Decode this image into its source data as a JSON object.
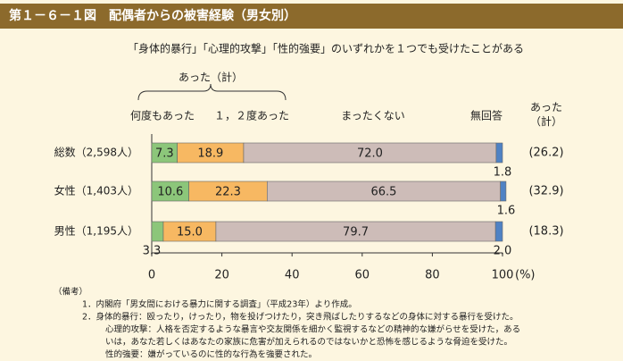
{
  "header": {
    "title": "第１－６－１図　配偶者からの被害経験（男女別）"
  },
  "chart_data": {
    "type": "stacked-bar-horizontal",
    "subtitle": "「身体的暴行」「心理的攻撃」「性的強要」のいずれかを１つでも受けたことがある",
    "bracket_label": "あった（計）",
    "categories": [
      "総数（2,598人）",
      "女性（1,403人）",
      "男性（1,195人）"
    ],
    "series": [
      {
        "name": "何度もあった",
        "color": "#8cc67a",
        "values": [
          7.3,
          10.6,
          3.3
        ],
        "value_labels": [
          "7.3",
          "10.6",
          "3.3"
        ]
      },
      {
        "name": "１，２度あった",
        "color": "#f7b862",
        "values": [
          18.9,
          22.3,
          15.0
        ],
        "value_labels": [
          "18.9",
          "22.3",
          "15.0"
        ]
      },
      {
        "name": "まったくない",
        "color": "#cdbcb8",
        "values": [
          72.0,
          66.5,
          79.7
        ],
        "value_labels": [
          "72.0",
          "66.5",
          "79.7"
        ]
      },
      {
        "name": "無回答",
        "color": "#4f82c4",
        "values": [
          1.8,
          1.6,
          2.0
        ],
        "value_labels": [
          "1.8",
          "1.6",
          "2.0"
        ]
      }
    ],
    "totals": {
      "name": "あった\n（計）",
      "values": [
        26.2,
        32.9,
        18.3
      ],
      "value_labels": [
        "(26.2)",
        "(32.9)",
        "(18.3)"
      ]
    },
    "xlim": [
      0,
      100
    ],
    "xticks": [
      0,
      20,
      40,
      60,
      80,
      100
    ],
    "x_unit": "(%)"
  },
  "notes": [
    "（備考）",
    "1．内閣府「男女間における暴力に関する調査」（平成23年）より作成。",
    "2．身体的暴行：殴ったり，けったり，物を投げつけたり，突き飛ばしたりするなどの身体に対する暴行を受けた。",
    "心理的攻撃：人格を否定するような暴言や交友関係を細かく監視するなどの精神的な嫌がらせを受けた，ある",
    "いは，あなた若しくはあなたの家族に危害が加えられるのではないかと恐怖を感じるような脅迫を受けた。",
    "性的強要：嫌がっているのに性的な行為を強要された。"
  ]
}
